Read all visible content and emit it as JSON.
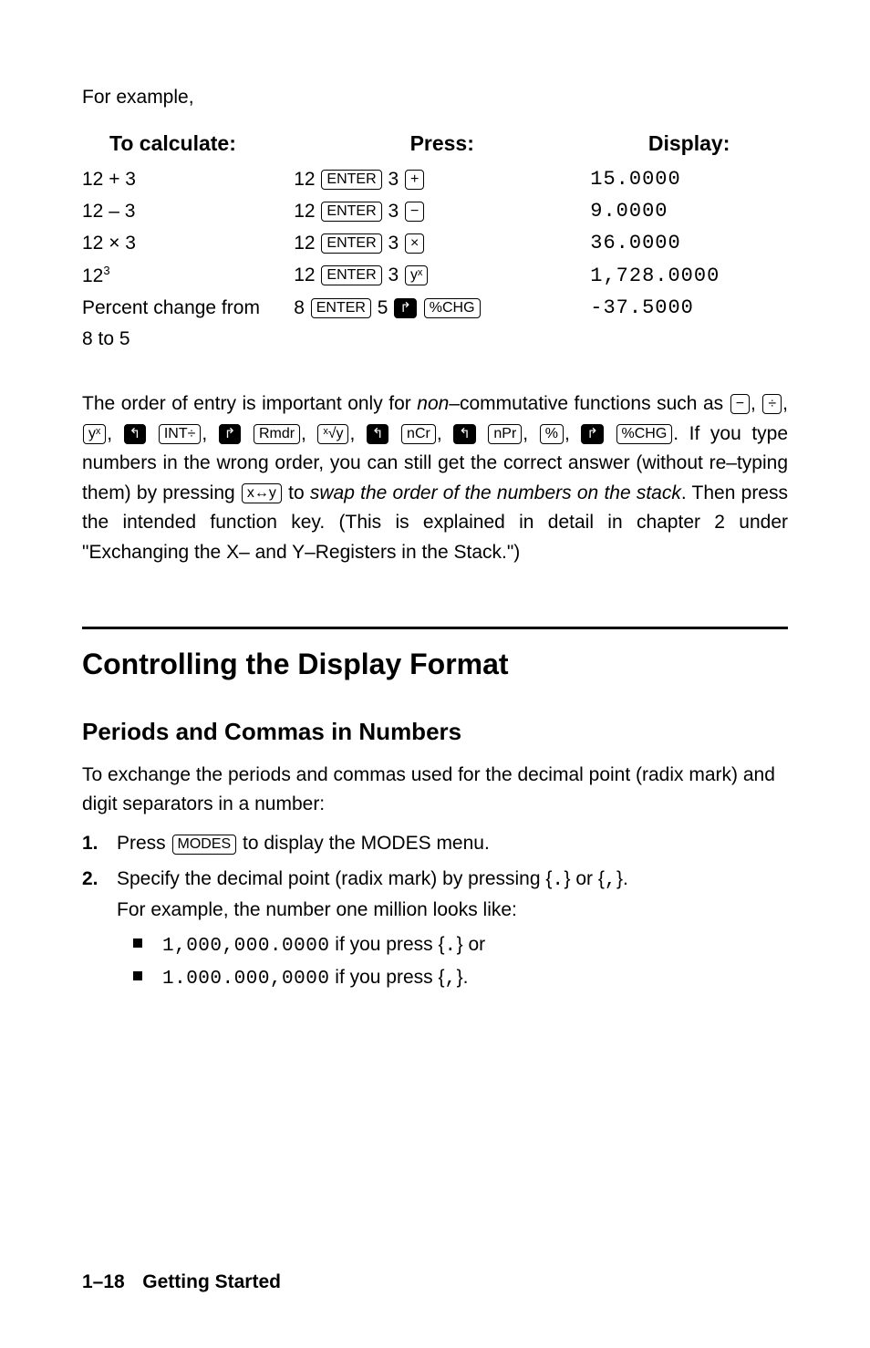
{
  "intro": "For example,",
  "table": {
    "headers": {
      "calc": "To calculate:",
      "press": "Press:",
      "display": "Display:"
    },
    "rows": [
      {
        "calc": "12 + 3",
        "press_pre": "12",
        "press_key1": "ENTER",
        "press_mid": "3",
        "press_key2": "+",
        "display": "15.0000"
      },
      {
        "calc": "12 – 3",
        "press_pre": "12",
        "press_key1": "ENTER",
        "press_mid": "3",
        "press_key2": "−",
        "display": "9.0000"
      },
      {
        "calc_html": "12 × 3",
        "press_pre": "12",
        "press_key1": "ENTER",
        "press_mid": "3",
        "press_key2": "×",
        "display": "36.0000"
      },
      {
        "calc_base": "12",
        "calc_sup": "3",
        "press_pre": "12",
        "press_key1": "ENTER",
        "press_mid": "3",
        "press_key2": "yˣ",
        "display": "1,728.0000"
      },
      {
        "calc_l1": "Percent change from",
        "calc_l2": "8 to 5",
        "press_pre": "8",
        "press_key1": "ENTER",
        "press_mid": "5",
        "press_shift": true,
        "press_key2": "%CHG",
        "display": "-37.5000"
      }
    ]
  },
  "order_para": {
    "p1": "The order of entry is important only for ",
    "p1_em": "non",
    "p1_after": "–commutative functions such as ",
    "keys_line": [
      {
        "t": "−"
      },
      {
        "txt": ", "
      },
      {
        "t": "÷"
      },
      {
        "txt": ", "
      },
      {
        "t": "yˣ"
      },
      {
        "txt": ", "
      },
      {
        "shift": "L"
      },
      {
        "sp": true
      },
      {
        "t": "INT÷"
      },
      {
        "txt": ", "
      },
      {
        "shift": "R"
      },
      {
        "sp": true
      },
      {
        "t": "Rmdr"
      },
      {
        "txt": ", "
      },
      {
        "t": "ˣ√y"
      },
      {
        "txt": ", "
      },
      {
        "shift": "L"
      },
      {
        "sp": true
      },
      {
        "t": "nCr"
      },
      {
        "txt": ", "
      },
      {
        "shift": "L"
      },
      {
        "sp": true
      },
      {
        "t": "nPr"
      },
      {
        "txt": ", "
      },
      {
        "t": "%"
      },
      {
        "txt": ", "
      },
      {
        "shift": "R"
      }
    ],
    "p2_key": "%CHG",
    "p2": ". If you type numbers in the wrong order, you can still get the correct answer (without re–typing them) by pressing ",
    "swap_key": "x↔y",
    "p3": " to ",
    "p3_em": "swap the order of the numbers on the stack",
    "p4": ". Then press the intended function key. (This is explained in detail in chapter 2 under \"Exchanging the X– and Y–Registers in the Stack.\")"
  },
  "h1": "Controlling the Display Format",
  "h2": "Periods and Commas in Numbers",
  "body1": "To exchange the periods and commas used for the decimal point (radix mark) and digit separators in a number:",
  "steps": {
    "s1_num": "1.",
    "s1_a": "Press ",
    "s1_key": "MODES",
    "s1_b": " to display the MODES menu.",
    "s2_num": "2.",
    "s2_a": "Specify the decimal point (radix mark) by pressing {",
    "s2_dot": ".",
    "s2_b": "} or {",
    "s2_comma": ",",
    "s2_c": "}.",
    "s2_line2": "For example, the number one million looks like:",
    "b1_num": "1,000,000.0000",
    "b1_txt": " if you press {",
    "b1_sym": ".",
    "b1_end": "} or",
    "b2_num": "1.000.000,0000",
    "b2_txt": " if you press {",
    "b2_sym": ",",
    "b2_end": "}."
  },
  "footer": {
    "page": "1–18",
    "chapter": "Getting Started"
  },
  "colors": {
    "text": "#000000",
    "bg": "#ffffff",
    "rule": "#000000"
  }
}
